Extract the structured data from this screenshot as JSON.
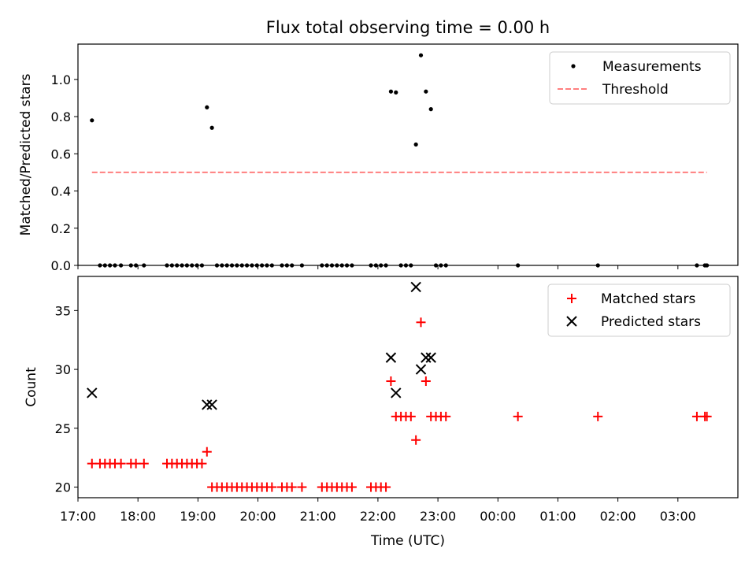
{
  "chart_data": [
    {
      "type": "scatter",
      "title": "Flux total observing time = 0.00 h",
      "xlabel": "",
      "ylabel": "Matched/Predicted stars",
      "xlim": [
        "17:00",
        "04:00"
      ],
      "ylim": [
        0,
        1.19
      ],
      "yticks": [
        0.0,
        0.2,
        0.4,
        0.6,
        0.8,
        1.0
      ],
      "ytick_labels": [
        "0.0",
        "0.2",
        "0.4",
        "0.6",
        "0.8",
        "1.0"
      ],
      "legend": {
        "position": "top-right",
        "entries": [
          "Measurements",
          "Threshold"
        ]
      },
      "series": [
        {
          "name": "Measurements",
          "marker": "dot",
          "color": "#000000",
          "points": [
            [
              "17:14",
              0.78
            ],
            [
              "17:22",
              0.0
            ],
            [
              "17:27",
              0.0
            ],
            [
              "17:32",
              0.0
            ],
            [
              "17:37",
              0.0
            ],
            [
              "17:43",
              0.0
            ],
            [
              "17:53",
              0.0
            ],
            [
              "17:58",
              0.0
            ],
            [
              "18:06",
              0.0
            ],
            [
              "18:29",
              0.0
            ],
            [
              "18:34",
              0.0
            ],
            [
              "18:39",
              0.0
            ],
            [
              "18:44",
              0.0
            ],
            [
              "18:49",
              0.0
            ],
            [
              "18:54",
              0.0
            ],
            [
              "18:59",
              0.0
            ],
            [
              "19:04",
              0.0
            ],
            [
              "19:09",
              0.85
            ],
            [
              "19:14",
              0.74
            ],
            [
              "19:19",
              0.0
            ],
            [
              "19:24",
              0.0
            ],
            [
              "19:29",
              0.0
            ],
            [
              "19:34",
              0.0
            ],
            [
              "19:39",
              0.0
            ],
            [
              "19:44",
              0.0
            ],
            [
              "19:49",
              0.0
            ],
            [
              "19:54",
              0.0
            ],
            [
              "19:59",
              0.0
            ],
            [
              "20:04",
              0.0
            ],
            [
              "20:09",
              0.0
            ],
            [
              "20:14",
              0.0
            ],
            [
              "20:24",
              0.0
            ],
            [
              "20:29",
              0.0
            ],
            [
              "20:34",
              0.0
            ],
            [
              "20:44",
              0.0
            ],
            [
              "21:04",
              0.0
            ],
            [
              "21:09",
              0.0
            ],
            [
              "21:14",
              0.0
            ],
            [
              "21:19",
              0.0
            ],
            [
              "21:24",
              0.0
            ],
            [
              "21:29",
              0.0
            ],
            [
              "21:34",
              0.0
            ],
            [
              "21:53",
              0.0
            ],
            [
              "21:58",
              0.0
            ],
            [
              "22:03",
              0.0
            ],
            [
              "22:08",
              0.0
            ],
            [
              "22:13",
              0.935
            ],
            [
              "22:18",
              0.93
            ],
            [
              "22:23",
              0.0
            ],
            [
              "22:28",
              0.0
            ],
            [
              "22:33",
              0.0
            ],
            [
              "22:38",
              0.65
            ],
            [
              "22:43",
              1.13
            ],
            [
              "22:48",
              0.935
            ],
            [
              "22:53",
              0.84
            ],
            [
              "22:58",
              0.0
            ],
            [
              "23:03",
              0.0
            ],
            [
              "23:08",
              0.0
            ],
            [
              "00:20",
              0.0
            ],
            [
              "01:40",
              0.0
            ],
            [
              "03:19",
              0.0
            ],
            [
              "03:27",
              0.0
            ],
            [
              "03:29",
              0.0
            ]
          ]
        },
        {
          "name": "Threshold",
          "line": "dashed",
          "color": "#ff7f7f",
          "points": [
            [
              "17:14",
              0.5
            ],
            [
              "03:29",
              0.5
            ]
          ]
        }
      ]
    },
    {
      "type": "scatter",
      "title": "",
      "xlabel": "Time (UTC)",
      "ylabel": "Count",
      "xlim": [
        "17:00",
        "04:00"
      ],
      "ylim": [
        19.1,
        37.9
      ],
      "yticks": [
        20,
        25,
        30,
        35
      ],
      "ytick_labels": [
        "20",
        "25",
        "30",
        "35"
      ],
      "xticks": [
        "17:00",
        "18:00",
        "19:00",
        "20:00",
        "21:00",
        "22:00",
        "23:00",
        "00:00",
        "01:00",
        "02:00",
        "03:00"
      ],
      "legend": {
        "position": "top-right",
        "entries": [
          "Matched stars",
          "Predicted stars"
        ]
      },
      "series": [
        {
          "name": "Matched stars",
          "marker": "plus",
          "color": "#ff0000",
          "points": [
            [
              "17:14",
              22
            ],
            [
              "17:22",
              22
            ],
            [
              "17:27",
              22
            ],
            [
              "17:32",
              22
            ],
            [
              "17:37",
              22
            ],
            [
              "17:43",
              22
            ],
            [
              "17:53",
              22
            ],
            [
              "17:58",
              22
            ],
            [
              "18:06",
              22
            ],
            [
              "18:29",
              22
            ],
            [
              "18:34",
              22
            ],
            [
              "18:39",
              22
            ],
            [
              "18:44",
              22
            ],
            [
              "18:49",
              22
            ],
            [
              "18:54",
              22
            ],
            [
              "18:59",
              22
            ],
            [
              "19:04",
              22
            ],
            [
              "19:09",
              23
            ],
            [
              "19:14",
              20
            ],
            [
              "19:19",
              20
            ],
            [
              "19:24",
              20
            ],
            [
              "19:29",
              20
            ],
            [
              "19:34",
              20
            ],
            [
              "19:39",
              20
            ],
            [
              "19:44",
              20
            ],
            [
              "19:49",
              20
            ],
            [
              "19:54",
              20
            ],
            [
              "19:59",
              20
            ],
            [
              "20:04",
              20
            ],
            [
              "20:09",
              20
            ],
            [
              "20:14",
              20
            ],
            [
              "20:24",
              20
            ],
            [
              "20:29",
              20
            ],
            [
              "20:34",
              20
            ],
            [
              "20:44",
              20
            ],
            [
              "21:04",
              20
            ],
            [
              "21:09",
              20
            ],
            [
              "21:14",
              20
            ],
            [
              "21:19",
              20
            ],
            [
              "21:24",
              20
            ],
            [
              "21:29",
              20
            ],
            [
              "21:34",
              20
            ],
            [
              "21:53",
              20
            ],
            [
              "21:58",
              20
            ],
            [
              "22:03",
              20
            ],
            [
              "22:08",
              20
            ],
            [
              "22:13",
              29
            ],
            [
              "22:18",
              26
            ],
            [
              "22:23",
              26
            ],
            [
              "22:28",
              26
            ],
            [
              "22:33",
              26
            ],
            [
              "22:38",
              24
            ],
            [
              "22:43",
              34
            ],
            [
              "22:48",
              29
            ],
            [
              "22:53",
              26
            ],
            [
              "22:58",
              26
            ],
            [
              "23:03",
              26
            ],
            [
              "23:08",
              26
            ],
            [
              "00:20",
              26
            ],
            [
              "01:40",
              26
            ],
            [
              "03:19",
              26
            ],
            [
              "03:27",
              26
            ],
            [
              "03:29",
              26
            ]
          ]
        },
        {
          "name": "Predicted stars",
          "marker": "x",
          "color": "#000000",
          "points": [
            [
              "17:14",
              28
            ],
            [
              "19:09",
              27
            ],
            [
              "19:14",
              27
            ],
            [
              "22:13",
              31
            ],
            [
              "22:18",
              28
            ],
            [
              "22:38",
              37
            ],
            [
              "22:43",
              30
            ],
            [
              "22:48",
              31
            ],
            [
              "22:53",
              31
            ]
          ]
        }
      ]
    }
  ]
}
